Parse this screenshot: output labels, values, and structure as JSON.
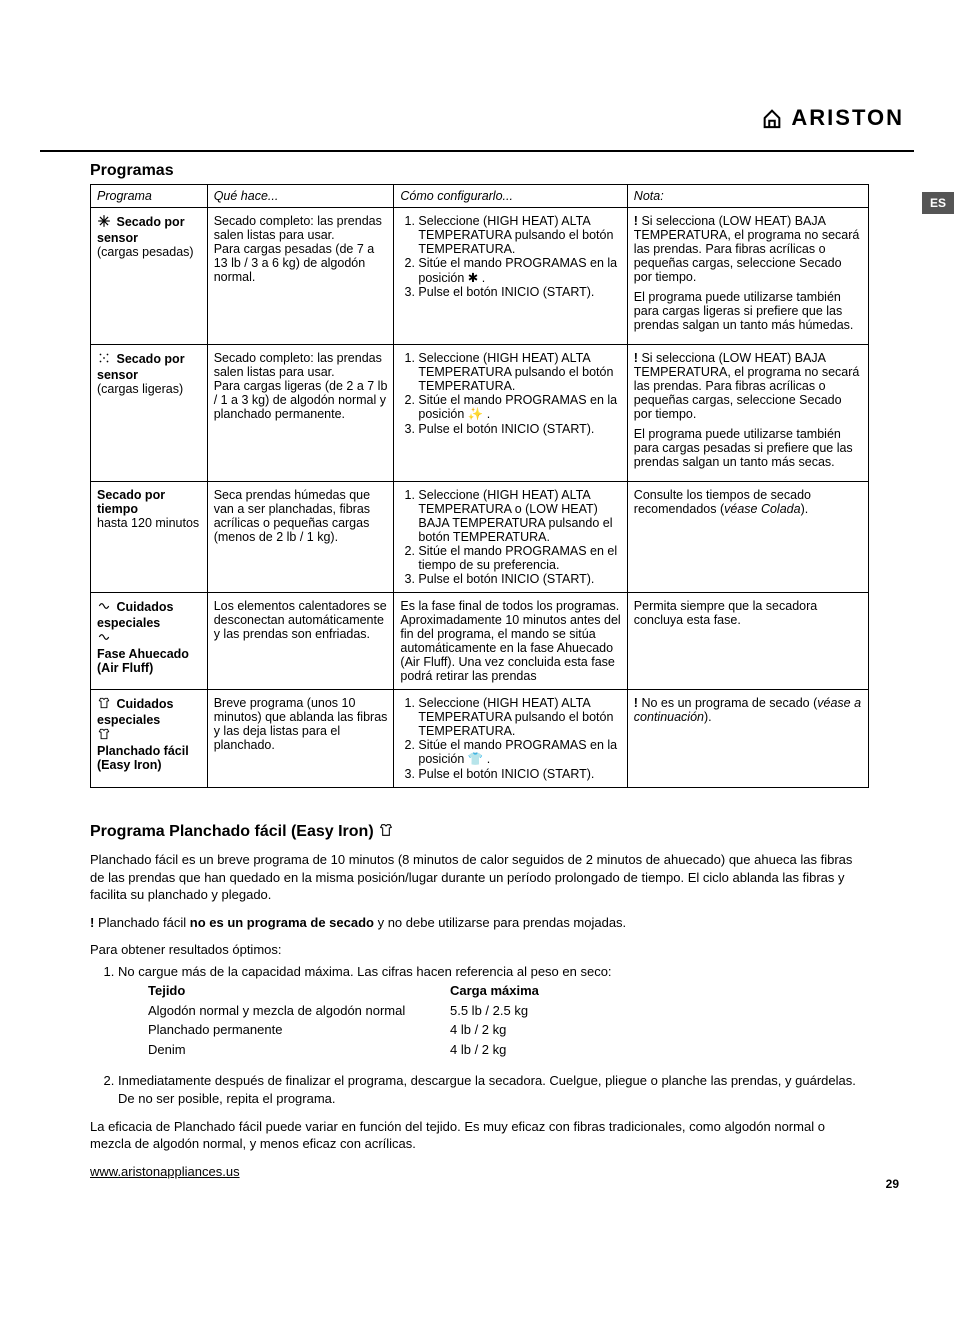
{
  "brand": "ARISTON",
  "lang_tag": "ES",
  "page_number": "29",
  "section_title": "Programas",
  "table": {
    "headers": [
      "Programa",
      "Qué hace...",
      "Cómo configurarlo...",
      "Nota:"
    ],
    "rows": [
      {
        "program_icon": "snowflake",
        "program_bold": "Secado por sensor",
        "program_rest": "(cargas pesadas)",
        "what": "Secado completo: las prendas salen listas para usar.\nPara cargas pesadas (de 7 a 13 lb / 3 a 6 kg) de algodón normal.",
        "steps": [
          "Seleccione (HIGH HEAT) ALTA TEMPERATURA pulsando el botón TEMPERATURA.",
          "Sitúe el mando PROGRAMAS en la posición ✱ .",
          "Pulse el botón INICIO (START)."
        ],
        "note_excl": "!",
        "note_lead": " Si selecciona (LOW HEAT) BAJA TEMPERATURA, el programa no secará las prendas. Para fibras acrílicas o pequeñas cargas, seleccione Secado por tiempo.",
        "note_para2": "El programa puede utilizarse también para cargas ligeras si prefiere que las prendas salgan un tanto más húmedas."
      },
      {
        "program_icon": "sparkle",
        "program_bold": "Secado por sensor",
        "program_rest": "(cargas ligeras)",
        "what": "Secado completo: las prendas salen listas para usar.\nPara cargas ligeras (de 2 a 7 lb / 1 a 3 kg) de algodón normal y planchado permanente.",
        "steps": [
          "Seleccione (HIGH HEAT) ALTA TEMPERATURA pulsando el botón TEMPERATURA.",
          "Sitúe el mando PROGRAMAS en la posición ✨ .",
          "Pulse el botón INICIO (START)."
        ],
        "note_excl": "!",
        "note_lead": " Si selecciona (LOW HEAT) BAJA TEMPERATURA, el programa no secará las prendas. Para fibras acrílicas o pequeñas cargas, seleccione Secado por tiempo.",
        "note_para2": "El programa puede utilizarse también para cargas pesadas si prefiere que las prendas salgan un tanto más secas."
      },
      {
        "program_icon": "none",
        "program_bold": "Secado por tiempo",
        "program_rest": "hasta 120 minutos",
        "what": "Seca prendas húmedas que van a ser planchadas, fibras acrílicas o pequeñas cargas (menos de 2 lb / 1 kg).",
        "steps": [
          "Seleccione (HIGH HEAT) ALTA TEMPERATURA o (LOW HEAT) BAJA TEMPERATURA pulsando el botón TEMPERATURA.",
          "Sitúe el mando PROGRAMAS en el tiempo de su preferencia.",
          "Pulse el botón INICIO (START)."
        ],
        "note_plain": "Consulte los tiempos de secado recomendados (",
        "note_ital": "véase Colada",
        "note_tail": ")."
      },
      {
        "program_icon": "fluff",
        "program_bold": "Cuidados especiales",
        "program_rest": "",
        "program_sub_bold": "Fase Ahuecado (Air Fluff)",
        "what": "Los elementos calentadores se desconectan automáticamente y las prendas son enfriadas.",
        "how_plain": "Es la fase final de todos los programas. Aproximadamente 10 minutos antes del fin del programa, el mando se sitúa automáticamente en la fase Ahuecado (Air Fluff). Una vez concluida esta fase podrá retirar las prendas",
        "note_plain": "Permita siempre que la secadora concluya esta fase."
      },
      {
        "program_icon": "shirt",
        "program_bold": "Cuidados especiales",
        "program_rest": "",
        "program_sub_bold": "Planchado fácil (Easy Iron)",
        "what": "Breve programa (unos 10 minutos) que ablanda las fibras y las deja listas para el planchado.",
        "steps": [
          "Seleccione (HIGH HEAT) ALTA TEMPERATURA pulsando el botón TEMPERATURA.",
          "Sitúe el mando PROGRAMAS en la posición 👕 .",
          "Pulse el botón INICIO (START)."
        ],
        "note_excl": "!",
        "note_lead": " No es un programa de secado (",
        "note_ital": "véase a continuación",
        "note_tail": ")."
      }
    ]
  },
  "section2_title": "Programa Planchado fácil (Easy Iron)",
  "p1": "Planchado fácil es un breve programa de 10 minutos (8 minutos de calor seguidos de 2 minutos de ahuecado) que ahueca las fibras de las prendas que han quedado en la misma posición/lugar durante un período prolongado de tiempo. El ciclo ablanda las fibras y facilita su planchado y plegado.",
  "p2_excl": "!",
  "p2_lead": " Planchado fácil ",
  "p2_bold": "no es un programa de secado",
  "p2_tail": " y no debe utilizarse para prendas mojadas.",
  "p3": "Para obtener resultados óptimos:",
  "li1_lead": "No cargue más de la capacidad máxima. Las cifras hacen referencia al peso en seco:",
  "fabric": {
    "head": [
      "Tejido",
      "Carga máxima"
    ],
    "rows": [
      [
        "Algodón normal y mezcla de algodón normal",
        "5.5 lb / 2.5 kg"
      ],
      [
        "Planchado permanente",
        "4 lb / 2 kg"
      ],
      [
        "Denim",
        "4 lb / 2 kg"
      ]
    ]
  },
  "li2": "Inmediatamente después de finalizar el programa, descargue la secadora. Cuelgue, pliegue o planche las prendas, y guárdelas. De no ser posible, repita el programa.",
  "p4": "La eficacia de Planchado fácil puede variar en función del tejido. Es muy eficaz con fibras tradicionales, como algodón normal o mezcla de algodón normal, y menos eficaz con acrílicas.",
  "url": "www.aristonappliances.us"
}
